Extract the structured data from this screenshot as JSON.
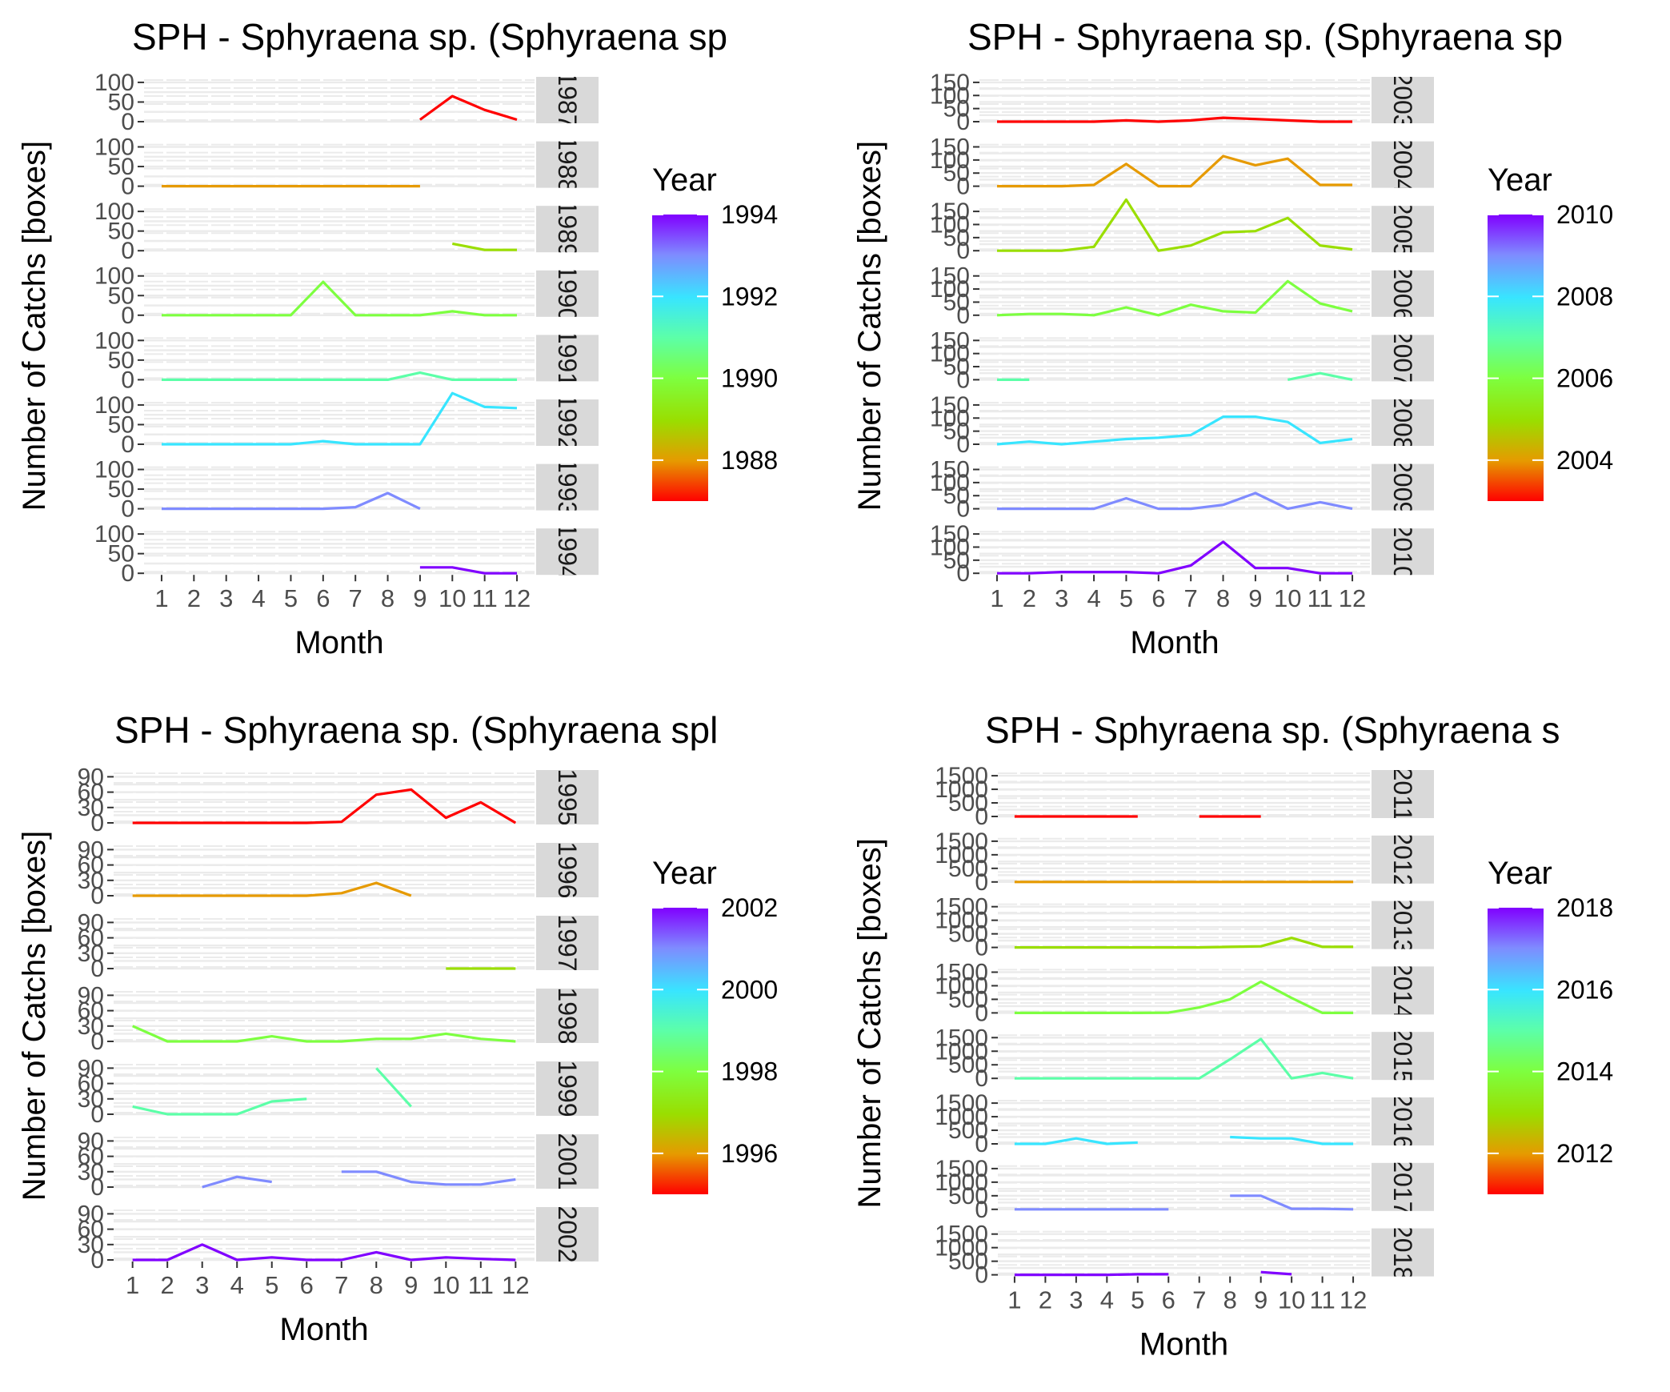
{
  "chart_data": [
    {
      "type": "line",
      "title": "SPH - Sphyraena sp. (Sphyraena sp",
      "xlabel": "Month",
      "ylabel": "Number of Catchs [boxes]",
      "x": [
        1,
        2,
        3,
        4,
        5,
        6,
        7,
        8,
        9,
        10,
        11,
        12
      ],
      "xticks": [
        "1",
        "2",
        "3",
        "4",
        "5",
        "6",
        "7",
        "8",
        "9",
        "10",
        "11",
        "12"
      ],
      "ylim": [
        0,
        110
      ],
      "yticks": [
        "0",
        "50",
        "100"
      ],
      "legend": {
        "title": "Year",
        "ticks": [
          "1988",
          "1990",
          "1992",
          "1994"
        ],
        "range": [
          1987,
          1994
        ],
        "placement": "right"
      },
      "series": [
        {
          "name": "1987",
          "strip_label": "1987",
          "color": "#FF0000",
          "values": [
            null,
            null,
            null,
            null,
            null,
            null,
            null,
            null,
            5,
            65,
            30,
            5
          ]
        },
        {
          "name": "1988",
          "strip_label": "1988",
          "color": "#E69A00",
          "values": [
            0,
            0,
            0,
            0,
            0,
            0,
            0,
            0,
            0,
            null,
            null,
            null
          ]
        },
        {
          "name": "1989",
          "strip_label": "1989",
          "color": "#9ADE00",
          "values": [
            null,
            null,
            null,
            null,
            null,
            null,
            null,
            null,
            null,
            18,
            2,
            2
          ]
        },
        {
          "name": "1990",
          "strip_label": "1990",
          "color": "#7DFF40",
          "values": [
            0,
            0,
            0,
            0,
            0,
            85,
            0,
            0,
            0,
            10,
            0,
            0
          ]
        },
        {
          "name": "1991",
          "strip_label": "1991",
          "color": "#5CFFA8",
          "values": [
            0,
            0,
            0,
            0,
            0,
            0,
            0,
            0,
            18,
            0,
            0,
            0
          ]
        },
        {
          "name": "1992",
          "strip_label": "1992",
          "color": "#38E5FF",
          "values": [
            0,
            0,
            0,
            0,
            0,
            8,
            0,
            0,
            0,
            130,
            95,
            92
          ]
        },
        {
          "name": "1993",
          "strip_label": "1993",
          "color": "#7F8BFF",
          "values": [
            0,
            0,
            0,
            0,
            0,
            0,
            4,
            40,
            0,
            null,
            null,
            null
          ]
        },
        {
          "name": "1994",
          "strip_label": "1994",
          "color": "#8000FF",
          "values": [
            null,
            null,
            null,
            null,
            null,
            null,
            null,
            null,
            15,
            15,
            0,
            0
          ]
        }
      ]
    },
    {
      "type": "line",
      "title": "SPH - Sphyraena sp. (Sphyraena sp",
      "xlabel": "Month",
      "ylabel": "Number of Catchs [boxes]",
      "x": [
        1,
        2,
        3,
        4,
        5,
        6,
        7,
        8,
        9,
        10,
        11,
        12
      ],
      "xticks": [
        "1",
        "2",
        "3",
        "4",
        "5",
        "6",
        "7",
        "8",
        "9",
        "10",
        "11",
        "12"
      ],
      "ylim": [
        0,
        165
      ],
      "yticks": [
        "0",
        "50",
        "100",
        "150"
      ],
      "legend": {
        "title": "Year",
        "ticks": [
          "2004",
          "2006",
          "2008",
          "2010"
        ],
        "range": [
          2003,
          2010
        ],
        "placement": "right"
      },
      "series": [
        {
          "name": "2003",
          "strip_label": "2003",
          "color": "#FF0000",
          "values": [
            0,
            0,
            0,
            0,
            5,
            0,
            5,
            15,
            10,
            5,
            0,
            0
          ]
        },
        {
          "name": "2004",
          "strip_label": "2004",
          "color": "#E69A00",
          "values": [
            0,
            0,
            0,
            5,
            85,
            0,
            0,
            115,
            80,
            105,
            5,
            5
          ]
        },
        {
          "name": "2005",
          "strip_label": "2005",
          "color": "#9ADE00",
          "values": [
            0,
            0,
            0,
            15,
            195,
            0,
            20,
            70,
            75,
            125,
            20,
            5
          ]
        },
        {
          "name": "2006",
          "strip_label": "2006",
          "color": "#7DFF40",
          "values": [
            0,
            5,
            5,
            0,
            30,
            0,
            40,
            15,
            10,
            130,
            45,
            15
          ]
        },
        {
          "name": "2007",
          "strip_label": "2007",
          "color": "#5CFFA8",
          "values": [
            0,
            0,
            null,
            null,
            null,
            null,
            null,
            null,
            null,
            0,
            25,
            0
          ]
        },
        {
          "name": "2008",
          "strip_label": "2008",
          "color": "#38E5FF",
          "values": [
            0,
            10,
            0,
            10,
            20,
            25,
            35,
            105,
            105,
            85,
            5,
            20
          ]
        },
        {
          "name": "2009",
          "strip_label": "2009",
          "color": "#7F8BFF",
          "values": [
            0,
            0,
            0,
            0,
            40,
            0,
            0,
            15,
            60,
            0,
            25,
            0
          ]
        },
        {
          "name": "2010",
          "strip_label": "2010",
          "color": "#8000FF",
          "values": [
            0,
            0,
            5,
            5,
            5,
            0,
            30,
            120,
            20,
            20,
            0,
            0
          ]
        }
      ]
    },
    {
      "type": "line",
      "title": "SPH - Sphyraena sp. (Sphyraena spl",
      "xlabel": "Month",
      "ylabel": "Number of Catchs [boxes]",
      "x": [
        1,
        2,
        3,
        4,
        5,
        6,
        7,
        8,
        9,
        10,
        11,
        12
      ],
      "xticks": [
        "1",
        "2",
        "3",
        "4",
        "5",
        "6",
        "7",
        "8",
        "9",
        "10",
        "11",
        "12"
      ],
      "ylim": [
        0,
        100
      ],
      "yticks": [
        "0",
        "30",
        "60",
        "90"
      ],
      "legend": {
        "title": "Year",
        "ticks": [
          "1996",
          "1998",
          "2000",
          "2002"
        ],
        "range": [
          1995,
          2002
        ],
        "placement": "right"
      },
      "series": [
        {
          "name": "1995",
          "strip_label": "1995",
          "color": "#FF0000",
          "values": [
            0,
            0,
            0,
            0,
            0,
            0,
            2,
            55,
            65,
            10,
            40,
            0
          ]
        },
        {
          "name": "1996",
          "strip_label": "1996",
          "color": "#E69A00",
          "values": [
            0,
            0,
            0,
            0,
            0,
            0,
            5,
            25,
            0,
            null,
            null,
            null
          ]
        },
        {
          "name": "1997",
          "strip_label": "1997",
          "color": "#9ADE00",
          "values": [
            null,
            null,
            null,
            null,
            null,
            null,
            null,
            null,
            null,
            0,
            0,
            0
          ]
        },
        {
          "name": "1998",
          "strip_label": "1998",
          "color": "#7DFF40",
          "values": [
            30,
            0,
            0,
            0,
            10,
            0,
            0,
            5,
            5,
            15,
            5,
            0
          ]
        },
        {
          "name": "1999",
          "strip_label": "1999",
          "color": "#5CFFA8",
          "values": [
            15,
            0,
            0,
            0,
            25,
            30,
            null,
            90,
            15,
            null,
            null,
            null
          ]
        },
        {
          "name": "2001",
          "strip_label": "2001",
          "color": "#7F8BFF",
          "values": [
            null,
            null,
            0,
            20,
            10,
            null,
            30,
            30,
            10,
            5,
            5,
            15
          ]
        },
        {
          "name": "2002",
          "strip_label": "2002",
          "color": "#8000FF",
          "values": [
            0,
            0,
            30,
            0,
            5,
            0,
            0,
            15,
            0,
            5,
            2,
            0
          ]
        }
      ]
    },
    {
      "type": "line",
      "title": "SPH - Sphyraena sp. (Sphyraena s",
      "xlabel": "Month",
      "ylabel": "Number of Catchs [boxes]",
      "x": [
        1,
        2,
        3,
        4,
        5,
        6,
        7,
        8,
        9,
        10,
        11,
        12
      ],
      "xticks": [
        "1",
        "2",
        "3",
        "4",
        "5",
        "6",
        "7",
        "8",
        "9",
        "10",
        "11",
        "12"
      ],
      "ylim": [
        0,
        1650
      ],
      "yticks": [
        "0",
        "500",
        "1000",
        "1500"
      ],
      "legend": {
        "title": "Year",
        "ticks": [
          "2012",
          "2014",
          "2016",
          "2018"
        ],
        "range": [
          2011,
          2018
        ],
        "placement": "right"
      },
      "series": [
        {
          "name": "2011",
          "strip_label": "2011",
          "color": "#FF0000",
          "values": [
            0,
            0,
            0,
            0,
            0,
            null,
            0,
            0,
            0,
            null,
            null,
            null
          ]
        },
        {
          "name": "2012",
          "strip_label": "2012",
          "color": "#E69A00",
          "values": [
            0,
            0,
            0,
            0,
            0,
            0,
            0,
            0,
            0,
            0,
            0,
            0
          ]
        },
        {
          "name": "2013",
          "strip_label": "2013",
          "color": "#9ADE00",
          "values": [
            0,
            0,
            0,
            0,
            0,
            0,
            0,
            20,
            40,
            350,
            20,
            20
          ]
        },
        {
          "name": "2014",
          "strip_label": "2014",
          "color": "#7DFF40",
          "values": [
            0,
            0,
            0,
            0,
            0,
            10,
            200,
            500,
            1150,
            550,
            0,
            0
          ]
        },
        {
          "name": "2015",
          "strip_label": "2015",
          "color": "#5CFFA8",
          "values": [
            0,
            0,
            0,
            0,
            0,
            0,
            0,
            700,
            1450,
            0,
            200,
            0
          ]
        },
        {
          "name": "2016",
          "strip_label": "2016",
          "color": "#38E5FF",
          "values": [
            0,
            0,
            200,
            0,
            50,
            null,
            null,
            250,
            200,
            200,
            0,
            0
          ]
        },
        {
          "name": "2017",
          "strip_label": "2017",
          "color": "#7F8BFF",
          "values": [
            0,
            0,
            0,
            0,
            0,
            0,
            null,
            500,
            500,
            20,
            20,
            0
          ]
        },
        {
          "name": "2018",
          "strip_label": "2018",
          "color": "#8000FF",
          "values": [
            0,
            0,
            0,
            0,
            20,
            20,
            null,
            null,
            100,
            20,
            null,
            null
          ]
        }
      ]
    }
  ]
}
